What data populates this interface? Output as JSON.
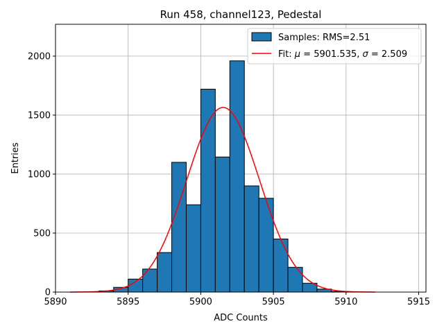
{
  "chart_data": {
    "type": "bar",
    "title": "Run 458, channel123, Pedestal",
    "xlabel": "ADC Counts",
    "ylabel": "Entries",
    "xlim": [
      5890,
      5915.5
    ],
    "ylim": [
      0,
      2270
    ],
    "xticks": [
      5890,
      5895,
      5900,
      5905,
      5910,
      5915
    ],
    "yticks": [
      0,
      500,
      1000,
      1500,
      2000
    ],
    "grid": true,
    "legend_position": "upper-right",
    "bin_width": 1,
    "histogram": {
      "name": "Samples: RMS=2.51",
      "color": "#1f77b4",
      "bin_lefts": [
        5891,
        5892,
        5893,
        5894,
        5895,
        5896,
        5897,
        5898,
        5899,
        5900,
        5901,
        5902,
        5903,
        5904,
        5905,
        5906,
        5907,
        5908,
        5909,
        5910,
        5911
      ],
      "values": [
        0,
        2,
        10,
        40,
        110,
        195,
        335,
        1100,
        740,
        1720,
        1145,
        1960,
        900,
        795,
        450,
        210,
        75,
        25,
        5,
        1,
        0
      ]
    },
    "fit": {
      "name_prefix": "Fit: ",
      "name_mu": "μ",
      "name_mid": " = 5901.535, ",
      "name_sigma": "σ",
      "name_suffix": " = 2.509",
      "color": "#ff0000",
      "mu": 5901.535,
      "sigma": 2.509,
      "amplitude": 1565,
      "x_range": [
        5891,
        5912
      ]
    }
  }
}
